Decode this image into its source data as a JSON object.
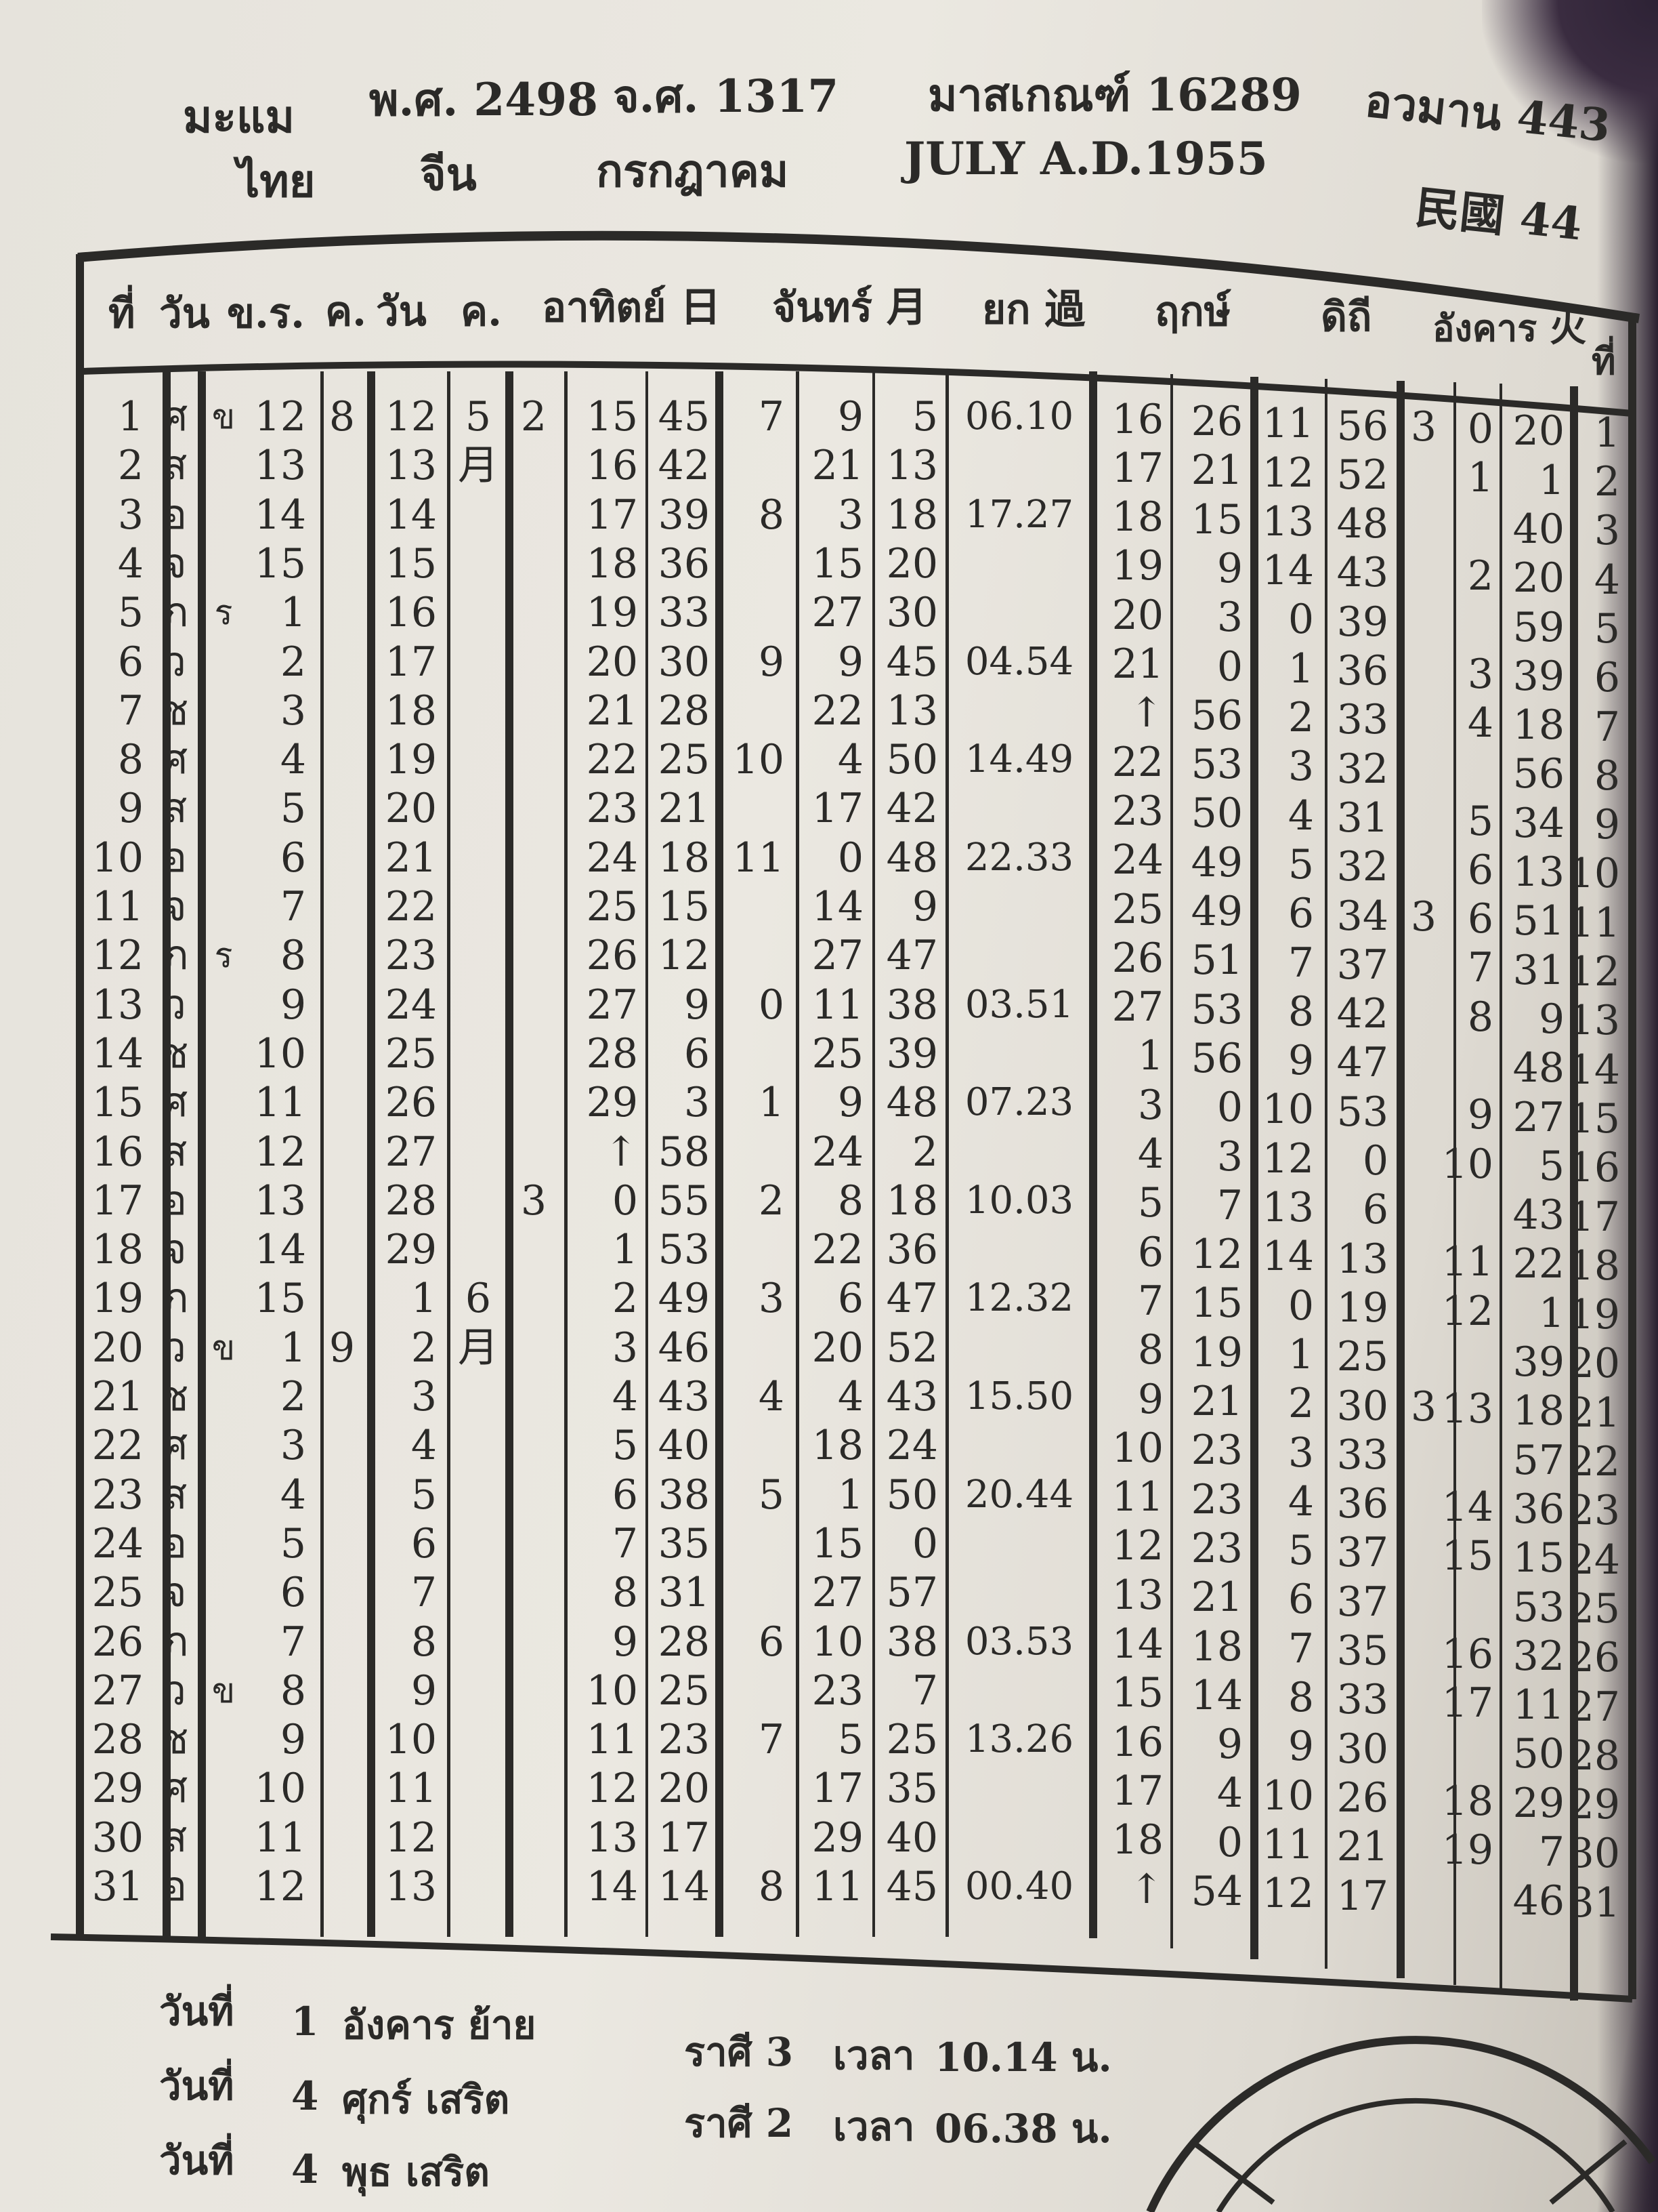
{
  "header": {
    "line1": [
      "มะแม",
      "พ.ศ. 2498",
      "จ.ศ. 1317",
      "มาสเกณฑ์ 16289",
      "อวมาน 443"
    ],
    "line2": [
      "ไทย",
      "จีน",
      "กรกฎาคม",
      "JULY A.D.1955",
      "民國 44"
    ]
  },
  "table": {
    "column_headers": [
      "ที่",
      "วัน",
      "ข.ร.",
      "ค.",
      "วัน",
      "ค.",
      "อาทิตย์ 日",
      "จันทร์ 月",
      "ยก 過",
      "ฤกษ์",
      "ดิถี",
      "อังคาร 火",
      "ที่"
    ],
    "columns": {
      "day": [
        "1",
        "2",
        "3",
        "4",
        "5",
        "6",
        "7",
        "8",
        "9",
        "10",
        "11",
        "12",
        "13",
        "14",
        "15",
        "16",
        "17",
        "18",
        "19",
        "20",
        "21",
        "22",
        "23",
        "24",
        "25",
        "26",
        "27",
        "28",
        "29",
        "30",
        "31"
      ],
      "weekday": [
        "ศ",
        "ส",
        "อ",
        "จ",
        "ภ",
        "ว",
        "ช",
        "ศ",
        "ส",
        "อ",
        "จ",
        "ภ",
        "ว",
        "ช",
        "ศ",
        "ส",
        "อ",
        "จ",
        "ภ",
        "ว",
        "ช",
        "ศ",
        "ส",
        "อ",
        "จ",
        "ภ",
        "ว",
        "ช",
        "ศ",
        "ส",
        "อ"
      ],
      "kr_mark": [
        "ข",
        "",
        "",
        "",
        "ร",
        "",
        "",
        "",
        "",
        "",
        "",
        "ร",
        "",
        "",
        "",
        "",
        "",
        "",
        "",
        "ข",
        "",
        "",
        "",
        "",
        "",
        "",
        "ข",
        "",
        "",
        "",
        ""
      ],
      "kr": [
        "12",
        "13",
        "14",
        "15",
        "1",
        "2",
        "3",
        "4",
        "5",
        "6",
        "7",
        "8",
        "9",
        "10",
        "11",
        "12",
        "13",
        "14",
        "15",
        "1",
        "2",
        "3",
        "4",
        "5",
        "6",
        "7",
        "8",
        "9",
        "10",
        "11",
        "12"
      ],
      "th_month": [
        "8",
        "",
        "",
        "",
        "",
        "",
        "",
        "",
        "",
        "",
        "",
        "",
        "",
        "",
        "",
        "",
        "",
        "",
        "",
        "9",
        "",
        "",
        "",
        "",
        "",
        "",
        "",
        "",
        "",
        "",
        ""
      ],
      "cn_day": [
        "12",
        "13",
        "14",
        "15",
        "16",
        "17",
        "18",
        "19",
        "20",
        "21",
        "22",
        "23",
        "24",
        "25",
        "26",
        "27",
        "28",
        "29",
        "1",
        "2",
        "3",
        "4",
        "5",
        "6",
        "7",
        "8",
        "9",
        "10",
        "11",
        "12",
        "13"
      ],
      "cn_month": [
        "5",
        "月",
        "",
        "",
        "",
        "",
        "",
        "",
        "",
        "",
        "",
        "",
        "",
        "",
        "",
        "",
        "",
        "",
        "6",
        "月",
        "",
        "",
        "",
        "",
        "",
        "",
        "",
        "",
        "",
        "",
        ""
      ],
      "sun_sign": [
        "2",
        "",
        "",
        "",
        "",
        "",
        "",
        "",
        "",
        "",
        "",
        "",
        "",
        "",
        "",
        "",
        "3",
        "",
        "",
        "",
        "",
        "",
        "",
        "",
        "",
        "",
        "",
        "",
        "",
        "",
        ""
      ],
      "sun_deg": [
        "15",
        "16",
        "17",
        "18",
        "19",
        "20",
        "21",
        "22",
        "23",
        "24",
        "25",
        "26",
        "27",
        "28",
        "29",
        "↑",
        "0",
        "1",
        "2",
        "3",
        "4",
        "5",
        "6",
        "7",
        "8",
        "9",
        "10",
        "11",
        "12",
        "13",
        "14"
      ],
      "sun_min": [
        "45",
        "42",
        "39",
        "36",
        "33",
        "30",
        "28",
        "25",
        "21",
        "18",
        "15",
        "12",
        "9",
        "6",
        "3",
        "58",
        "55",
        "53",
        "49",
        "46",
        "43",
        "40",
        "38",
        "35",
        "31",
        "28",
        "25",
        "23",
        "20",
        "17",
        "14"
      ],
      "moon_sign": [
        "7",
        "",
        "8",
        "",
        "",
        "9",
        "",
        "10",
        "",
        "11",
        "",
        "",
        "0",
        "",
        "1",
        "",
        "2",
        "",
        "3",
        "",
        "4",
        "",
        "5",
        "",
        "",
        "6",
        "",
        "7",
        "",
        "",
        "8"
      ],
      "moon_deg": [
        "9",
        "21",
        "3",
        "15",
        "27",
        "9",
        "22",
        "4",
        "17",
        "0",
        "14",
        "27",
        "11",
        "25",
        "9",
        "24",
        "8",
        "22",
        "6",
        "20",
        "4",
        "18",
        "1",
        "15",
        "27",
        "10",
        "23",
        "5",
        "17",
        "29",
        "11"
      ],
      "moon_min": [
        "5",
        "13",
        "18",
        "20",
        "30",
        "45",
        "13",
        "50",
        "42",
        "48",
        "9",
        "47",
        "38",
        "39",
        "48",
        "2",
        "18",
        "36",
        "47",
        "52",
        "43",
        "24",
        "50",
        "0",
        "57",
        "38",
        "7",
        "25",
        "35",
        "40",
        "45"
      ],
      "moon_time": [
        "06.10",
        "",
        "17.27",
        "",
        "",
        "04.54",
        "",
        "14.49",
        "",
        "22.33",
        "",
        "",
        "03.51",
        "",
        "07.23",
        "",
        "10.03",
        "",
        "12.32",
        "",
        "15.50",
        "",
        "20.44",
        "",
        "",
        "03.53",
        "",
        "13.26",
        "",
        "",
        "00.40"
      ],
      "rk_deg": [
        "16",
        "17",
        "18",
        "19",
        "20",
        "21",
        "↑",
        "22",
        "23",
        "24",
        "25",
        "26",
        "27",
        "1",
        "3",
        "4",
        "5",
        "6",
        "7",
        "8",
        "9",
        "10",
        "11",
        "12",
        "13",
        "14",
        "15",
        "16",
        "17",
        "18",
        "↑"
      ],
      "rk_min": [
        "26",
        "21",
        "15",
        "9",
        "3",
        "0",
        "56",
        "53",
        "50",
        "49",
        "49",
        "51",
        "53",
        "56",
        "0",
        "3",
        "7",
        "12",
        "15",
        "19",
        "21",
        "23",
        "23",
        "23",
        "21",
        "18",
        "14",
        "9",
        "4",
        "0",
        "54"
      ],
      "dt_deg": [
        "11",
        "12",
        "13",
        "14",
        "0",
        "1",
        "2",
        "3",
        "4",
        "5",
        "6",
        "7",
        "8",
        "9",
        "10",
        "12",
        "13",
        "14",
        "0",
        "1",
        "2",
        "3",
        "4",
        "5",
        "6",
        "7",
        "8",
        "9",
        "10",
        "11",
        "12"
      ],
      "dt_min": [
        "56",
        "52",
        "48",
        "43",
        "39",
        "36",
        "33",
        "32",
        "31",
        "32",
        "34",
        "37",
        "42",
        "47",
        "53",
        "0",
        "6",
        "13",
        "19",
        "25",
        "30",
        "33",
        "36",
        "37",
        "37",
        "35",
        "33",
        "30",
        "26",
        "21",
        "17"
      ],
      "mars_sign": [
        "3",
        "",
        "",
        "",
        "",
        "",
        "",
        "",
        "",
        "",
        "3",
        "",
        "",
        "",
        "",
        "",
        "",
        "",
        "",
        "",
        "3",
        "",
        "",
        "",
        "",
        "",
        "",
        "",
        "",
        "",
        ""
      ],
      "mars_deg": [
        "0",
        "1",
        "",
        "2",
        "",
        "3",
        "4",
        "",
        "5",
        "6",
        "6",
        "7",
        "8",
        "",
        "9",
        "10",
        "",
        "11",
        "12",
        "",
        "13",
        "",
        "14",
        "15",
        "",
        "16",
        "17",
        "",
        "18",
        "19",
        ""
      ],
      "mars_min": [
        "20",
        "1",
        "40",
        "20",
        "59",
        "39",
        "18",
        "56",
        "34",
        "13",
        "51",
        "31",
        "9",
        "48",
        "27",
        "5",
        "43",
        "22",
        "1",
        "39",
        "18",
        "57",
        "36",
        "15",
        "53",
        "32",
        "11",
        "50",
        "29",
        "7",
        "46"
      ],
      "day_r": [
        "1",
        "2",
        "3",
        "4",
        "5",
        "6",
        "7",
        "8",
        "9",
        "10",
        "11",
        "12",
        "13",
        "14",
        "15",
        "16",
        "17",
        "18",
        "19",
        "20",
        "21",
        "22",
        "23",
        "24",
        "25",
        "26",
        "27",
        "28",
        "29",
        "30",
        "31"
      ]
    }
  },
  "footer": [
    {
      "label": "วันที่",
      "day": "1",
      "event": "อังคาร ย้าย",
      "rasi": "ราศี 3",
      "time_label": "เวลา",
      "time": "10.14 น."
    },
    {
      "label": "วันที่",
      "day": "4",
      "event": "ศุกร์ เสริต",
      "rasi": "ราศี 2",
      "time_label": "เวลา",
      "time": "06.38 น."
    },
    {
      "label": "วันที่",
      "day": "4",
      "event": "พุธ เสริต"
    }
  ],
  "colors": {
    "paper": "#e8e5de",
    "ink": "#2b2a28",
    "background": "#2a2030"
  }
}
